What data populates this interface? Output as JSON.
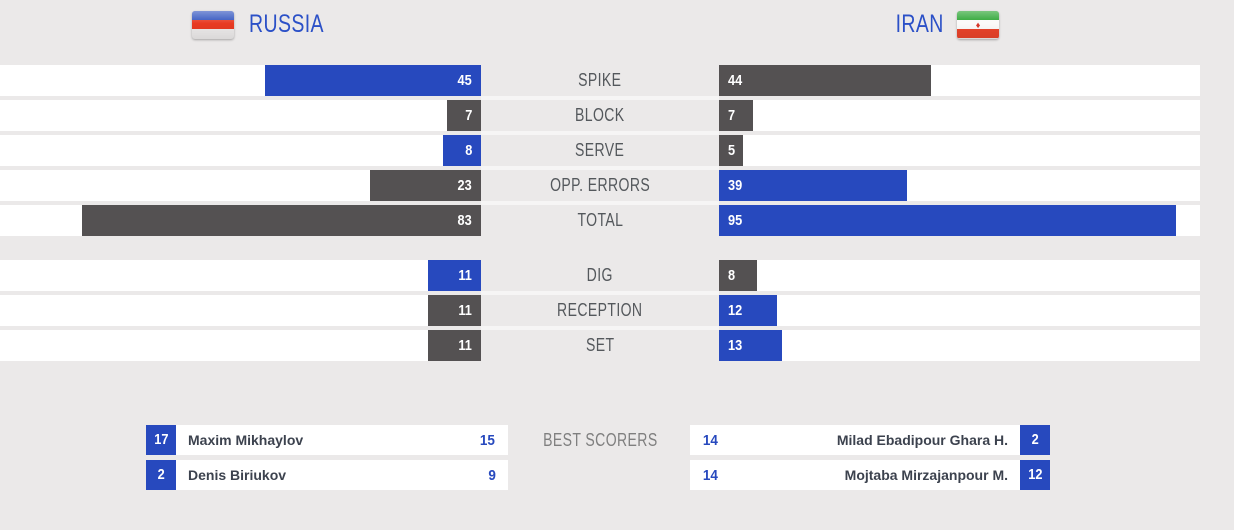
{
  "header": {
    "russia": {
      "name": "RUSSIA",
      "flag": "russia-flag"
    },
    "iran": {
      "name": "IRAN",
      "flag": "iran-flag"
    }
  },
  "colors": {
    "background": "#EBE9E9",
    "track_white": "#FFFFFF",
    "bar_blue": "#2749BE",
    "bar_gray": "#545152",
    "header_blue": "#2B50C7",
    "label_gray": "#54585C",
    "scorer_label_gray": "#7F7F7F",
    "name_dark": "#3C424E"
  },
  "chart_data": {
    "type": "bar",
    "layout": "mirrored-horizontal-comparison",
    "categories": [
      "SPIKE",
      "BLOCK",
      "SERVE",
      "OPP. ERRORS",
      "TOTAL",
      "DIG",
      "RECEPTION",
      "SET"
    ],
    "series": [
      {
        "name": "RUSSIA",
        "values": [
          45,
          7,
          8,
          23,
          83,
          11,
          11,
          11
        ]
      },
      {
        "name": "IRAN",
        "values": [
          44,
          7,
          5,
          39,
          95,
          8,
          12,
          13
        ]
      }
    ],
    "value_scale_max": 100,
    "group_break_after_index": 4,
    "highlight": "higher value bar is blue; lower or tied bar is dark gray"
  },
  "best_scorers": {
    "label": "BEST SCORERS",
    "russia": [
      {
        "jersey": "17",
        "name": "Maxim Mikhaylov",
        "points": "15"
      },
      {
        "jersey": "2",
        "name": "Denis Biriukov",
        "points": "9"
      }
    ],
    "iran": [
      {
        "points": "14",
        "name": "Milad Ebadipour Ghara H.",
        "jersey": "2"
      },
      {
        "points": "14",
        "name": "Mojtaba Mirzajanpour M.",
        "jersey": "12"
      }
    ]
  }
}
